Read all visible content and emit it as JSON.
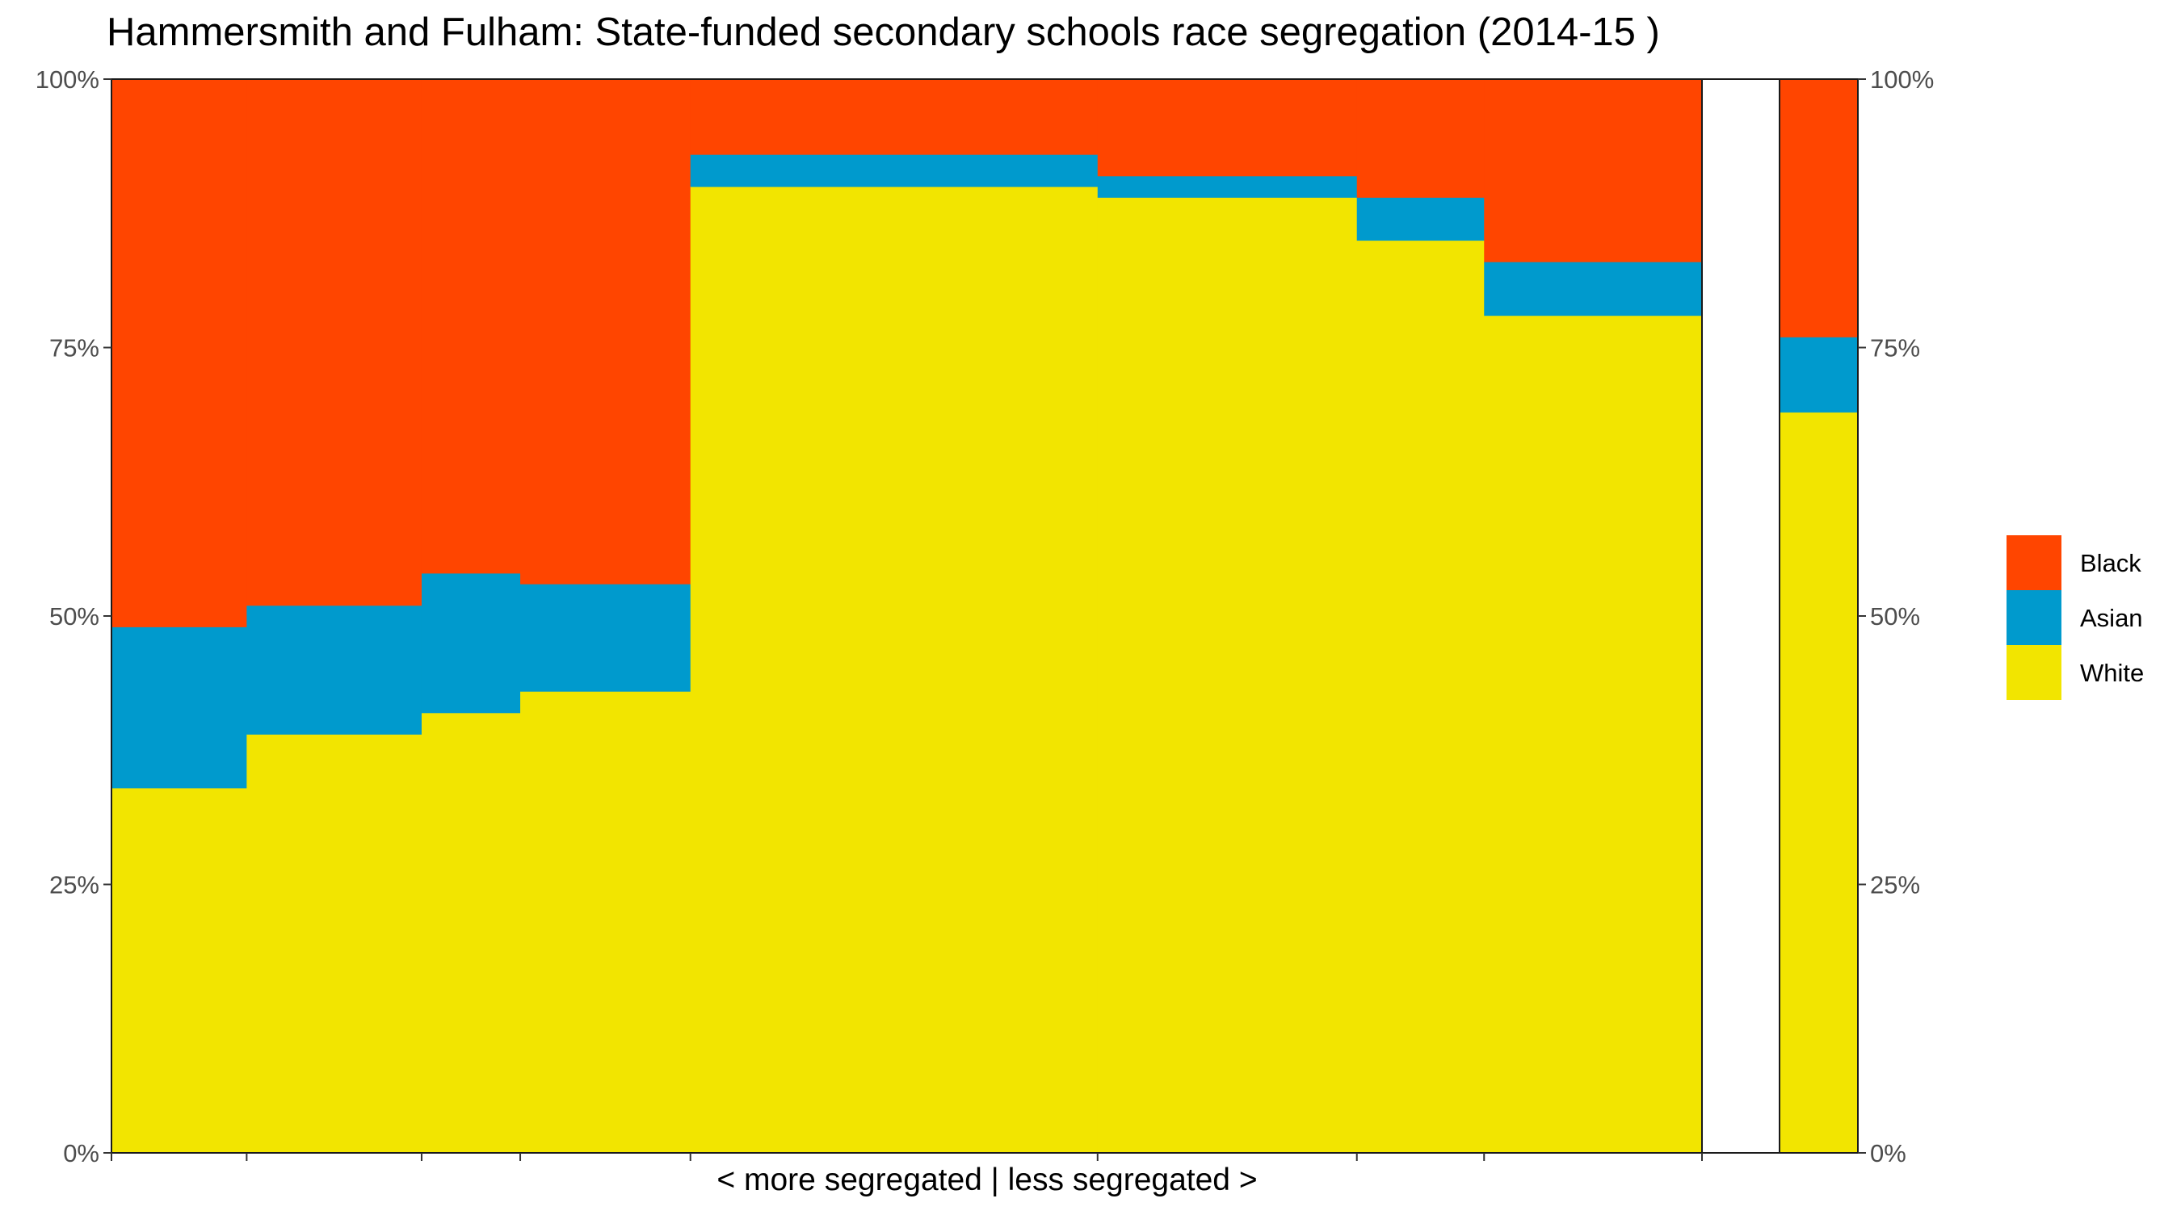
{
  "chart_data": {
    "type": "bar",
    "title": "Hammersmith and Fulham: State-funded secondary schools race segregation (2014-15 )",
    "xlabel": "< more segregated | less segregated >",
    "ylabel": "",
    "ylim": [
      0,
      1
    ],
    "y_ticks": [
      "0%",
      "25%",
      "50%",
      "75%",
      "100%"
    ],
    "secondary_y_axis": true,
    "grid": false,
    "legend_position": "right",
    "stack_order": [
      "White",
      "Asian",
      "Black"
    ],
    "colors": {
      "Black": "#FF4500",
      "Asian": "#009ACD",
      "White": "#F2E500"
    },
    "schools": [
      {
        "width": 0.085,
        "White": 0.34,
        "Asian": 0.15,
        "Black": 0.51
      },
      {
        "width": 0.11,
        "White": 0.39,
        "Asian": 0.12,
        "Black": 0.49
      },
      {
        "width": 0.062,
        "White": 0.41,
        "Asian": 0.13,
        "Black": 0.46
      },
      {
        "width": 0.107,
        "White": 0.43,
        "Asian": 0.1,
        "Black": 0.47
      },
      {
        "width": 0.256,
        "White": 0.9,
        "Asian": 0.03,
        "Black": 0.07
      },
      {
        "width": 0.163,
        "White": 0.89,
        "Asian": 0.02,
        "Black": 0.09
      },
      {
        "width": 0.08,
        "White": 0.85,
        "Asian": 0.04,
        "Black": 0.11
      },
      {
        "width": 0.137,
        "White": 0.78,
        "Asian": 0.05,
        "Black": 0.17
      }
    ],
    "overall": {
      "White": 0.69,
      "Asian": 0.07,
      "Black": 0.24
    },
    "legend": [
      "Black",
      "Asian",
      "White"
    ]
  }
}
